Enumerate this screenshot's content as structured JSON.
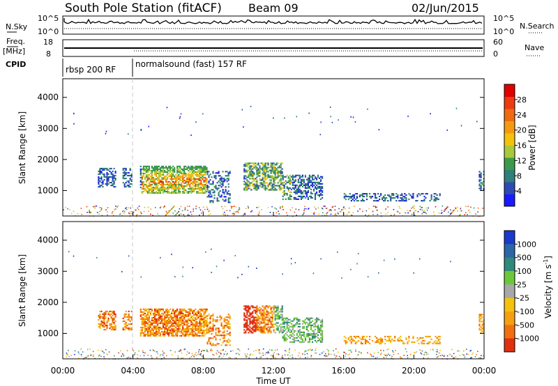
{
  "header": {
    "station": "South Pole Station (fitACF)",
    "beam": "Beam 09",
    "date": "02/Jun/2015"
  },
  "strip_panels": {
    "nsky_label": "N.Sky",
    "nsky_ticks": [
      "10^5",
      "10^0"
    ],
    "nsearch_label": "N.Search",
    "nsearch_ticks": [
      "10^5",
      "10^0"
    ],
    "freq_label": "Freq.",
    "freq_unit": "[MHz]",
    "freq_ticks": [
      "18",
      "8"
    ],
    "nave_label": "Nave",
    "nave_ticks": [
      "60",
      "0"
    ],
    "cpid_label": "CPID",
    "cpid_segments": [
      {
        "label": "rbsp 200 RF",
        "start_hour": 0
      },
      {
        "label": "normalsound (fast) 157 RF",
        "start_hour": 4
      }
    ]
  },
  "chart_data": [
    {
      "type": "heatmap",
      "name": "power-panel",
      "ylabel": "Slant Range [km]",
      "xlabel": "",
      "x_range_hours": [
        0,
        24
      ],
      "ylim": [
        180,
        4600
      ],
      "yticks": [
        "1000",
        "2000",
        "3000",
        "4000"
      ],
      "colorbar": {
        "label": "Power [dB]",
        "ticks": [
          "4",
          "8",
          "12",
          "16",
          "20",
          "24",
          "28"
        ],
        "colors": [
          "#1a1aff",
          "#2e4bb4",
          "#2f7f7a",
          "#3d9a4a",
          "#a8c93a",
          "#f4c20d",
          "#f59a10",
          "#f06a10",
          "#ee3a10",
          "#e00000"
        ]
      }
    },
    {
      "type": "heatmap",
      "name": "velocity-panel",
      "ylabel": "Slant Range [km]",
      "xlabel": "Time UT",
      "x_range_hours": [
        0,
        24
      ],
      "ylim": [
        180,
        4600
      ],
      "yticks": [
        "1000",
        "2000",
        "3000",
        "4000"
      ],
      "xticks": [
        "00:00",
        "04:00",
        "08:00",
        "12:00",
        "16:00",
        "20:00",
        "00:00"
      ],
      "colorbar": {
        "label": "Velocity [m s",
        "label_sup": "-1",
        "ticks": [
          "1000",
          "500",
          "100",
          "25",
          "-25",
          "-100",
          "-500",
          "-1000"
        ],
        "colors": [
          "#1a3acc",
          "#2a66a8",
          "#2f8a7a",
          "#6cc83a",
          "#a8a8a8",
          "#f4c20d",
          "#f5a010",
          "#f07010",
          "#e03010"
        ]
      }
    }
  ]
}
